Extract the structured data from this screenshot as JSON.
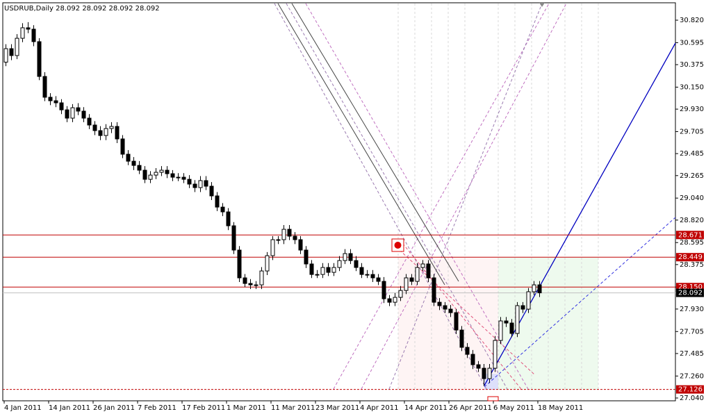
{
  "chart_data": {
    "type": "candlestick",
    "title": "USDRUB,Daily 28.092 28.092 28.092 28.092",
    "categories": [
      "4 Jan 2011",
      null,
      null,
      null,
      null,
      null,
      null,
      null,
      "14 Jan 2011",
      null,
      null,
      null,
      null,
      null,
      null,
      null,
      "26 Jan 2011",
      null,
      null,
      null,
      null,
      null,
      null,
      null,
      "7 Feb 2011",
      null,
      null,
      null,
      null,
      null,
      null,
      null,
      "17 Feb 2011",
      null,
      null,
      null,
      null,
      null,
      null,
      null,
      "1 Mar 2011",
      null,
      null,
      null,
      null,
      null,
      null,
      null,
      "11 Mar 2011",
      null,
      null,
      null,
      null,
      null,
      null,
      null,
      "23 Mar 2011",
      null,
      null,
      null,
      null,
      null,
      null,
      null,
      "4 Apr 2011",
      null,
      null,
      null,
      null,
      null,
      null,
      null,
      "14 Apr 2011",
      null,
      null,
      null,
      null,
      null,
      null,
      null,
      "26 Apr 2011",
      null,
      null,
      null,
      null,
      null,
      null,
      null,
      "6 May 2011",
      null,
      null,
      null,
      null,
      null,
      null,
      null,
      "18 May 2011"
    ],
    "open": [
      30.4,
      30.535,
      30.466,
      30.639,
      30.744,
      30.73,
      30.605,
      30.257,
      30.049,
      30.014,
      29.993,
      29.923,
      29.84,
      29.944,
      29.91,
      29.84,
      29.771,
      29.715,
      29.666,
      29.736,
      29.757,
      29.632,
      29.479,
      29.409,
      29.367,
      29.319,
      29.228,
      29.27,
      29.298,
      29.319,
      29.284,
      29.249,
      29.249,
      29.228,
      29.18,
      29.145,
      29.215,
      29.159,
      29.062,
      28.95,
      28.902,
      28.763,
      28.52,
      28.242,
      28.186,
      28.172,
      28.172,
      28.311,
      28.464,
      28.624,
      28.624,
      28.728,
      28.659,
      28.624,
      28.52,
      28.381,
      28.276,
      28.276,
      28.346,
      28.297,
      28.346,
      28.415,
      28.485,
      28.415,
      28.346,
      28.276,
      28.276,
      28.242,
      28.207,
      28.033,
      27.998,
      28.047,
      28.116,
      28.242,
      28.207,
      28.346,
      28.381,
      28.242,
      27.998,
      27.964,
      27.929,
      27.894,
      27.72,
      27.547,
      27.477,
      27.373,
      27.338,
      27.234,
      27.338,
      27.616,
      27.811,
      27.79,
      27.686,
      27.964,
      27.929,
      28.103,
      28.172
    ],
    "high": [
      30.58,
      30.58,
      30.68,
      30.79,
      30.8,
      30.77,
      30.64,
      30.3,
      30.09,
      30.06,
      30.03,
      29.96,
      29.98,
      29.99,
      29.95,
      29.88,
      29.81,
      29.76,
      29.78,
      29.8,
      29.8,
      29.67,
      29.52,
      29.45,
      29.41,
      29.36,
      29.31,
      29.34,
      29.36,
      29.36,
      29.32,
      29.29,
      29.29,
      29.27,
      29.22,
      29.26,
      29.26,
      29.2,
      29.1,
      28.99,
      28.94,
      28.8,
      28.56,
      28.28,
      28.23,
      28.21,
      28.35,
      28.5,
      28.66,
      28.66,
      28.77,
      28.77,
      28.7,
      28.66,
      28.56,
      28.42,
      28.32,
      28.39,
      28.39,
      28.39,
      28.46,
      28.53,
      28.53,
      28.46,
      28.39,
      28.32,
      28.32,
      28.28,
      28.25,
      28.07,
      28.09,
      28.16,
      28.28,
      28.28,
      28.39,
      28.42,
      28.42,
      28.28,
      28.04,
      28.0,
      27.97,
      27.93,
      27.76,
      27.59,
      27.52,
      27.41,
      27.38,
      27.38,
      27.66,
      27.85,
      27.85,
      27.83,
      28.0,
      28.0,
      28.14,
      28.21,
      28.21
    ],
    "low": [
      30.36,
      30.42,
      30.43,
      30.6,
      30.69,
      30.56,
      30.22,
      30.01,
      29.97,
      29.95,
      29.88,
      29.8,
      29.8,
      29.87,
      29.8,
      29.73,
      29.67,
      29.62,
      29.62,
      29.69,
      29.59,
      29.44,
      29.37,
      29.32,
      29.28,
      29.19,
      29.19,
      29.23,
      29.26,
      29.24,
      29.21,
      29.21,
      29.19,
      29.14,
      29.1,
      29.1,
      29.12,
      29.02,
      28.91,
      28.86,
      28.72,
      28.48,
      28.2,
      28.15,
      28.13,
      28.13,
      28.13,
      28.27,
      28.42,
      28.58,
      28.58,
      28.62,
      28.58,
      28.48,
      28.34,
      28.24,
      28.24,
      28.24,
      28.26,
      28.26,
      28.31,
      28.38,
      28.38,
      28.31,
      28.24,
      28.24,
      28.2,
      28.17,
      27.99,
      27.96,
      27.96,
      28.01,
      28.08,
      28.17,
      28.17,
      28.31,
      28.2,
      27.96,
      27.92,
      27.89,
      27.85,
      27.68,
      27.51,
      27.44,
      27.33,
      27.3,
      27.16,
      27.19,
      27.3,
      27.58,
      27.75,
      27.65,
      27.65,
      27.89,
      27.89,
      28.07,
      28.05
    ],
    "close": [
      30.535,
      30.466,
      30.639,
      30.744,
      30.73,
      30.605,
      30.257,
      30.049,
      30.014,
      29.993,
      29.923,
      29.84,
      29.944,
      29.91,
      29.84,
      29.771,
      29.715,
      29.666,
      29.736,
      29.757,
      29.632,
      29.479,
      29.409,
      29.367,
      29.319,
      29.228,
      29.27,
      29.298,
      29.319,
      29.284,
      29.249,
      29.249,
      29.228,
      29.18,
      29.145,
      29.215,
      29.159,
      29.062,
      28.95,
      28.902,
      28.763,
      28.52,
      28.242,
      28.186,
      28.172,
      28.172,
      28.311,
      28.464,
      28.624,
      28.624,
      28.728,
      28.659,
      28.624,
      28.52,
      28.381,
      28.276,
      28.276,
      28.346,
      28.297,
      28.346,
      28.415,
      28.485,
      28.415,
      28.346,
      28.276,
      28.276,
      28.242,
      28.207,
      28.033,
      27.998,
      28.047,
      28.116,
      28.242,
      28.207,
      28.346,
      28.381,
      28.242,
      27.998,
      27.964,
      27.929,
      27.894,
      27.72,
      27.547,
      27.477,
      27.373,
      27.338,
      27.234,
      27.338,
      27.616,
      27.811,
      27.79,
      27.686,
      27.964,
      27.929,
      28.103,
      28.172,
      28.092
    ],
    "ylim": [
      27.012,
      30.994
    ],
    "yticks": [
      {
        "value": 30.82,
        "label": "30.820"
      },
      30.595,
      30.375,
      {
        "value": 30.15,
        "label": "30.150"
      },
      {
        "value": 29.93,
        "label": "29.930"
      },
      29.705,
      29.485,
      29.265,
      {
        "value": 29.04,
        "label": "29.040"
      },
      {
        "value": 28.82,
        "label": "28.820"
      },
      28.595,
      28.375,
      {
        "value": 28.15,
        "label": "28.150"
      },
      {
        "value": 27.93,
        "label": "27.930"
      },
      27.705,
      27.485,
      {
        "value": 27.26,
        "label": "27.260"
      },
      {
        "value": 27.04,
        "label": "27.040"
      }
    ],
    "levels": [
      {
        "value": 28.671,
        "color": "#c00000"
      },
      {
        "value": 28.449,
        "color": "#c00000"
      },
      {
        "value": 28.15,
        "label": "28.150",
        "color": "#c00000"
      },
      {
        "value": 27.126,
        "color": "#c00000",
        "style": "dashed"
      },
      {
        "value": 28.092,
        "color": "#000000",
        "line_color": "#c0c0c0"
      }
    ],
    "up_color": "#ffffff",
    "down_color": "#000000"
  }
}
